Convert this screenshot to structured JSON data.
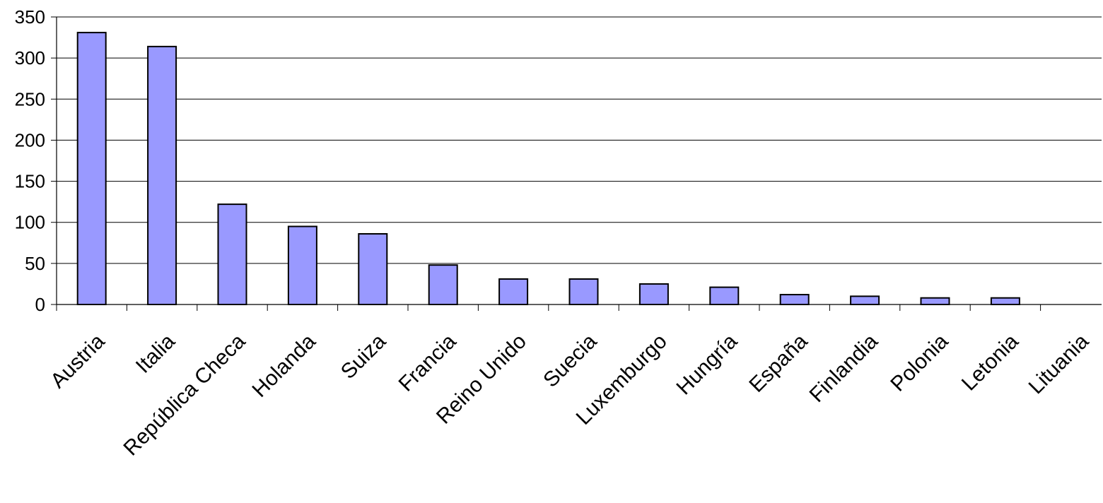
{
  "chart_data": {
    "type": "bar",
    "categories": [
      "Austria",
      "Italia",
      "República Checa",
      "Holanda",
      "Suiza",
      "Francia",
      "Reino Unido",
      "Suecia",
      "Luxemburgo",
      "Hungría",
      "España",
      "Finlandia",
      "Polonia",
      "Letonia",
      "Lituania"
    ],
    "values": [
      331,
      314,
      122,
      95,
      86,
      48,
      31,
      31,
      25,
      21,
      12,
      10,
      8,
      8,
      0
    ],
    "title": "",
    "xlabel": "",
    "ylabel": "",
    "ylim": [
      0,
      350
    ],
    "yticks": [
      0,
      50,
      100,
      150,
      200,
      250,
      300,
      350
    ],
    "grid": true,
    "legend": "none",
    "bar_color": "#9999FF",
    "edge_color": "#000000"
  }
}
